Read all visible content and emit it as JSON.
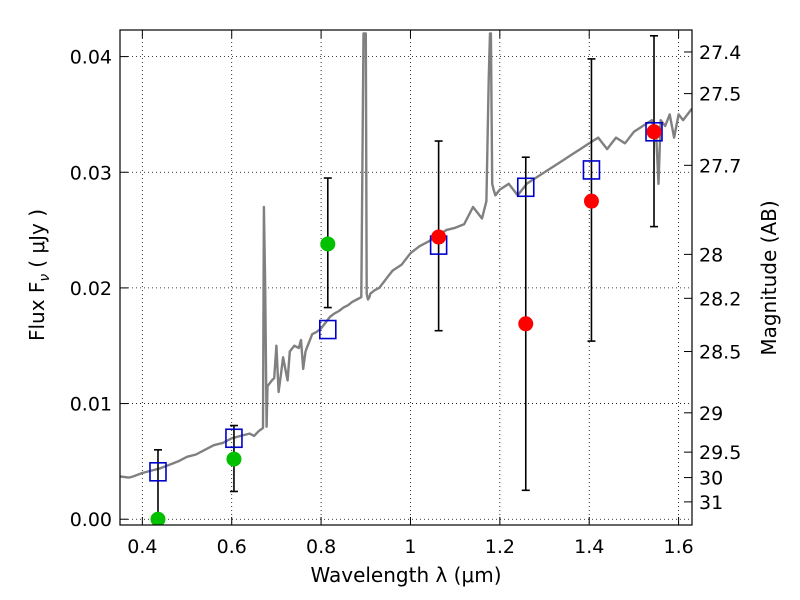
{
  "chart_data": {
    "type": "scatter",
    "xlabel": "Wavelength  λ (μm)",
    "ylabel": "Flux  F",
    "ylabel_sub": "ν",
    "ylabel_unit": "( μJy )",
    "ylabel_right": "Magnitude (AB)",
    "xlim": [
      0.35,
      1.63
    ],
    "ylim": [
      -0.0005,
      0.0423
    ],
    "grid": true,
    "x_ticks": [
      0.4,
      0.6,
      0.8,
      1.0,
      1.2,
      1.4,
      1.6
    ],
    "x_tick_labels": [
      "0.4",
      "0.6",
      "0.8",
      "1",
      "1.2",
      "1.4",
      "1.6"
    ],
    "y_ticks": [
      0.0,
      0.01,
      0.02,
      0.03,
      0.04
    ],
    "y_tick_labels": [
      "0.00",
      "0.01",
      "0.02",
      "0.03",
      "0.04"
    ],
    "right_ticks": [
      {
        "label": "27.4",
        "flux": 0.0404
      },
      {
        "label": "27.5",
        "flux": 0.0368
      },
      {
        "label": "27.7",
        "flux": 0.0306
      },
      {
        "label": "28",
        "flux": 0.0229
      },
      {
        "label": "28.2",
        "flux": 0.0191
      },
      {
        "label": "28.5",
        "flux": 0.0145
      },
      {
        "label": "29",
        "flux": 0.0092
      },
      {
        "label": "29.5",
        "flux": 0.0058
      },
      {
        "label": "30",
        "flux": 0.0036
      },
      {
        "label": "31",
        "flux": 0.0015
      }
    ],
    "series": [
      {
        "kind": "line",
        "color": "#808080",
        "x": [
          0.35,
          0.37,
          0.38,
          0.4,
          0.42,
          0.44,
          0.46,
          0.48,
          0.5,
          0.52,
          0.54,
          0.56,
          0.58,
          0.6,
          0.62,
          0.64,
          0.65,
          0.66,
          0.67,
          0.672,
          0.675,
          0.678,
          0.68,
          0.69,
          0.695,
          0.7,
          0.705,
          0.71,
          0.715,
          0.72,
          0.725,
          0.73,
          0.74,
          0.75,
          0.755,
          0.76,
          0.765,
          0.77,
          0.78,
          0.79,
          0.8,
          0.81,
          0.82,
          0.83,
          0.84,
          0.85,
          0.86,
          0.87,
          0.88,
          0.89,
          0.895,
          0.9,
          0.902,
          0.905,
          0.908,
          0.91,
          0.92,
          0.93,
          0.94,
          0.95,
          0.96,
          0.98,
          1.0,
          1.02,
          1.04,
          1.06,
          1.08,
          1.1,
          1.12,
          1.14,
          1.16,
          1.17,
          1.175,
          1.178,
          1.18,
          1.183,
          1.186,
          1.19,
          1.2,
          1.22,
          1.24,
          1.26,
          1.28,
          1.3,
          1.32,
          1.34,
          1.36,
          1.38,
          1.4,
          1.42,
          1.44,
          1.46,
          1.48,
          1.5,
          1.52,
          1.54,
          1.55,
          1.555,
          1.56,
          1.57,
          1.58,
          1.59,
          1.6,
          1.61,
          1.62,
          1.63
        ],
        "y": [
          0.0037,
          0.0036,
          0.0037,
          0.004,
          0.0042,
          0.0044,
          0.0047,
          0.005,
          0.0054,
          0.0056,
          0.006,
          0.0064,
          0.0066,
          0.007,
          0.0072,
          0.0074,
          0.0072,
          0.0076,
          0.0079,
          0.027,
          0.02,
          0.008,
          0.0115,
          0.012,
          0.0122,
          0.015,
          0.011,
          0.0125,
          0.014,
          0.013,
          0.012,
          0.0145,
          0.015,
          0.0148,
          0.0155,
          0.013,
          0.0145,
          0.015,
          0.016,
          0.0162,
          0.0165,
          0.017,
          0.0175,
          0.0178,
          0.018,
          0.0183,
          0.0185,
          0.0188,
          0.019,
          0.0192,
          0.042,
          0.042,
          0.0195,
          0.019,
          0.0192,
          0.0195,
          0.0198,
          0.02,
          0.0205,
          0.021,
          0.0215,
          0.022,
          0.023,
          0.0236,
          0.024,
          0.0245,
          0.025,
          0.0252,
          0.0255,
          0.027,
          0.026,
          0.0275,
          0.038,
          0.042,
          0.042,
          0.029,
          0.0285,
          0.028,
          0.0285,
          0.029,
          0.028,
          0.029,
          0.0295,
          0.03,
          0.0305,
          0.031,
          0.0315,
          0.032,
          0.0325,
          0.033,
          0.032,
          0.033,
          0.0325,
          0.0335,
          0.034,
          0.0345,
          0.033,
          0.029,
          0.0345,
          0.034,
          0.035,
          0.033,
          0.035,
          0.0345,
          0.035,
          0.0355
        ]
      },
      {
        "kind": "errorbar",
        "color": "#000000",
        "points": [
          {
            "x": 0.435,
            "low": 0.0,
            "high": 0.006
          },
          {
            "x": 0.605,
            "low": 0.0024,
            "high": 0.0081
          },
          {
            "x": 0.815,
            "low": 0.0183,
            "high": 0.0295
          },
          {
            "x": 1.063,
            "low": 0.0163,
            "high": 0.0327
          },
          {
            "x": 1.258,
            "low": 0.0025,
            "high": 0.0313
          },
          {
            "x": 1.405,
            "low": 0.0154,
            "high": 0.0398
          },
          {
            "x": 1.545,
            "low": 0.0253,
            "high": 0.0418
          }
        ]
      },
      {
        "kind": "open-square",
        "color": "#0000cc",
        "x": [
          0.435,
          0.605,
          0.815,
          1.063,
          1.258,
          1.405,
          1.545
        ],
        "y": [
          0.0041,
          0.007,
          0.0164,
          0.0237,
          0.0287,
          0.0302,
          0.0335
        ]
      },
      {
        "kind": "filled-circle",
        "color": "#00c000",
        "x": [
          0.435,
          0.605,
          0.815
        ],
        "y": [
          0.0,
          0.0052,
          0.0238
        ]
      },
      {
        "kind": "filled-circle",
        "color": "#ff0000",
        "x": [
          1.063,
          1.258,
          1.405,
          1.545
        ],
        "y": [
          0.0244,
          0.0169,
          0.0275,
          0.0335
        ]
      }
    ]
  }
}
